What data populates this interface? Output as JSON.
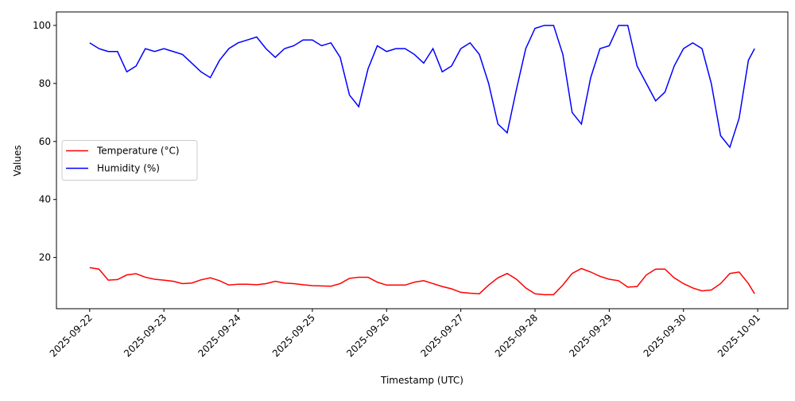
{
  "chart_data": {
    "type": "line",
    "x_label": "Timestamp (UTC)",
    "y_label": "Values",
    "x": [
      "2025-09-22T00:00",
      "2025-09-22T03:00",
      "2025-09-22T06:00",
      "2025-09-22T09:00",
      "2025-09-22T12:00",
      "2025-09-22T15:00",
      "2025-09-22T18:00",
      "2025-09-22T21:00",
      "2025-09-23T00:00",
      "2025-09-23T03:00",
      "2025-09-23T06:00",
      "2025-09-23T09:00",
      "2025-09-23T12:00",
      "2025-09-23T15:00",
      "2025-09-23T18:00",
      "2025-09-23T21:00",
      "2025-09-24T00:00",
      "2025-09-24T03:00",
      "2025-09-24T06:00",
      "2025-09-24T09:00",
      "2025-09-24T12:00",
      "2025-09-24T15:00",
      "2025-09-24T18:00",
      "2025-09-24T21:00",
      "2025-09-25T00:00",
      "2025-09-25T03:00",
      "2025-09-25T06:00",
      "2025-09-25T09:00",
      "2025-09-25T12:00",
      "2025-09-25T15:00",
      "2025-09-25T18:00",
      "2025-09-25T21:00",
      "2025-09-26T00:00",
      "2025-09-26T03:00",
      "2025-09-26T06:00",
      "2025-09-26T09:00",
      "2025-09-26T12:00",
      "2025-09-26T15:00",
      "2025-09-26T18:00",
      "2025-09-26T21:00",
      "2025-09-27T00:00",
      "2025-09-27T03:00",
      "2025-09-27T06:00",
      "2025-09-27T09:00",
      "2025-09-27T12:00",
      "2025-09-27T15:00",
      "2025-09-27T18:00",
      "2025-09-27T21:00",
      "2025-09-28T00:00",
      "2025-09-28T03:00",
      "2025-09-28T06:00",
      "2025-09-28T09:00",
      "2025-09-28T12:00",
      "2025-09-28T15:00",
      "2025-09-28T18:00",
      "2025-09-28T21:00",
      "2025-09-29T00:00",
      "2025-09-29T03:00",
      "2025-09-29T06:00",
      "2025-09-29T09:00",
      "2025-09-29T12:00",
      "2025-09-29T15:00",
      "2025-09-29T18:00",
      "2025-09-29T21:00",
      "2025-09-30T00:00",
      "2025-09-30T03:00",
      "2025-09-30T06:00",
      "2025-09-30T09:00",
      "2025-09-30T12:00",
      "2025-09-30T15:00",
      "2025-09-30T18:00",
      "2025-09-30T21:00",
      "2025-09-30T23:00"
    ],
    "series": [
      {
        "name": "Temperature (°C)",
        "color": "#ff0000",
        "values": [
          16.5,
          16,
          12.2,
          12.4,
          14,
          14.4,
          13.2,
          12.5,
          12.2,
          11.8,
          11,
          11.2,
          12.3,
          13,
          12,
          10.5,
          10.8,
          10.8,
          10.6,
          11,
          11.8,
          11.2,
          11,
          10.6,
          10.3,
          10.2,
          10.1,
          11,
          12.8,
          13.2,
          13.2,
          11.5,
          10.5,
          10.5,
          10.5,
          11.5,
          12,
          11,
          10,
          9.2,
          8,
          7.7,
          7.5,
          10.5,
          13,
          14.5,
          12.5,
          9.5,
          7.5,
          7.2,
          7.2,
          10.5,
          14.5,
          16.2,
          15,
          13.5,
          12.5,
          12,
          9.8,
          10,
          14,
          16,
          16,
          13,
          11,
          9.5,
          8.5,
          8.8,
          11,
          14.5,
          15,
          11,
          7.5
        ]
      },
      {
        "name": "Humidity (%)",
        "color": "#0000ff",
        "values": [
          94,
          92,
          91,
          91,
          84,
          86,
          92,
          91,
          92,
          91,
          90,
          87,
          84,
          82,
          88,
          92,
          94,
          95,
          96,
          92,
          89,
          92,
          93,
          95,
          95,
          93,
          94,
          89,
          76,
          72,
          85,
          93,
          91,
          92,
          92,
          90,
          87,
          92,
          84,
          86,
          92,
          94,
          90,
          80,
          66,
          63,
          78,
          92,
          99,
          100,
          100,
          90,
          70,
          66,
          82,
          92,
          93,
          100,
          100,
          86,
          80,
          74,
          77,
          86,
          92,
          94,
          92,
          80,
          62,
          58,
          68,
          88,
          92
        ]
      }
    ],
    "xlim": [
      "2025-09-21T13:15",
      "2025-10-01T09:45"
    ],
    "xticks": [
      "2025-09-22",
      "2025-09-23",
      "2025-09-24",
      "2025-09-25",
      "2025-09-26",
      "2025-09-27",
      "2025-09-28",
      "2025-09-29",
      "2025-09-30",
      "2025-10-01"
    ],
    "ylim": [
      2.35,
      104.65
    ],
    "yticks": [
      20,
      40,
      60,
      80,
      100
    ],
    "grid": false,
    "legend": "center left"
  }
}
